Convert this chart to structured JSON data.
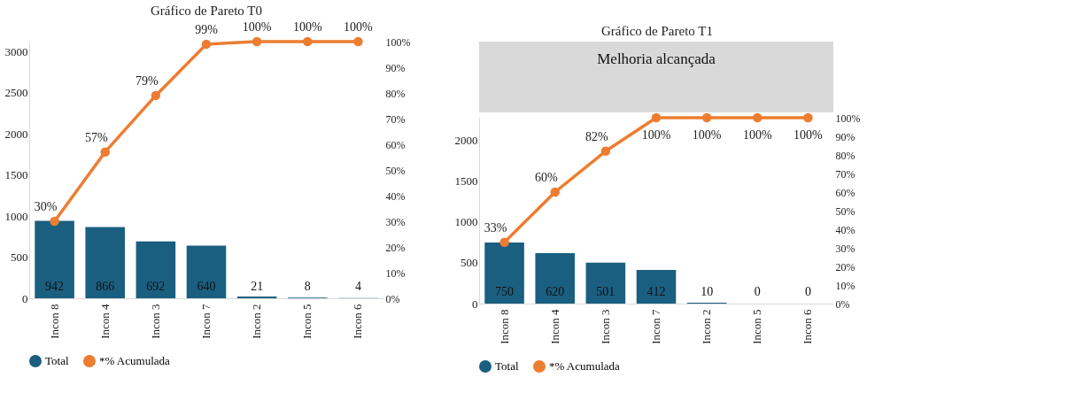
{
  "chart_data": [
    {
      "type": "bar",
      "title": "Gráfico de Pareto T0",
      "categories": [
        "Incon 8",
        "Incon 4",
        "Incon 3",
        "Incon 7",
        "Incon 2",
        "Incon 5",
        "Incon 6"
      ],
      "series": [
        {
          "name": "Total",
          "color": "#1a5f80",
          "values": [
            942,
            866,
            692,
            640,
            21,
            8,
            4
          ],
          "value_labels": [
            "942",
            "866",
            "692",
            "640",
            "21",
            "8",
            "4"
          ]
        },
        {
          "name": "*% Acumulada",
          "type": "line",
          "axis": "y2",
          "color": "#ed7d31",
          "values": [
            30,
            57,
            79,
            99,
            100,
            100,
            100
          ],
          "value_labels": [
            "30%",
            "57%",
            "79%",
            "99%",
            "100%",
            "100%",
            "100%"
          ]
        }
      ],
      "ylim": [
        0,
        3120
      ],
      "yticks": [
        0,
        500,
        1000,
        1500,
        2000,
        2500,
        3000
      ],
      "y2lim": [
        0,
        100
      ],
      "y2ticks": [
        {
          "value": 0,
          "label": "0%"
        },
        {
          "value": 10,
          "label": "10%"
        },
        {
          "value": 20,
          "label": "20%"
        },
        {
          "value": 30,
          "label": "30%"
        },
        {
          "value": 40,
          "label": "40%"
        },
        {
          "value": 50,
          "label": "50%"
        },
        {
          "value": 60,
          "label": "60%"
        },
        {
          "value": 70,
          "label": "70%"
        },
        {
          "value": 80,
          "label": "80%"
        },
        {
          "value": 90,
          "label": "90%"
        },
        {
          "value": 100,
          "label": "100%"
        }
      ],
      "marker": "circle",
      "grid": false,
      "legend": "bottom"
    },
    {
      "type": "bar",
      "title": "Gráfico de Pareto T1",
      "categories": [
        "Incon 8",
        "Incon 4",
        "Incon 3",
        "Incon 7",
        "Incon 2",
        "Incon 5",
        "Incon 6"
      ],
      "series": [
        {
          "name": "Total",
          "color": "#1a5f80",
          "values": [
            750,
            620,
            501,
            412,
            10,
            0,
            0
          ],
          "value_labels": [
            "750",
            "620",
            "501",
            "412",
            "10",
            "0",
            "0"
          ]
        },
        {
          "name": "*% Acumulada",
          "type": "line",
          "axis": "y2",
          "color": "#ed7d31",
          "values": [
            33,
            60,
            82,
            100,
            100,
            100,
            100
          ],
          "value_labels": [
            "33%",
            "60%",
            "82%",
            "100%",
            "100%",
            "100%",
            "100%"
          ]
        }
      ],
      "ylim": [
        0,
        2280
      ],
      "yticks": [
        0,
        500,
        1000,
        1500,
        2000
      ],
      "y2lim": [
        0,
        100
      ],
      "y2ticks": [
        {
          "value": 0,
          "label": "0%"
        },
        {
          "value": 10,
          "label": "10%"
        },
        {
          "value": 20,
          "label": "20%"
        },
        {
          "value": 30,
          "label": "30%"
        },
        {
          "value": 40,
          "label": "40%"
        },
        {
          "value": 50,
          "label": "50%"
        },
        {
          "value": 60,
          "label": "60%"
        },
        {
          "value": 70,
          "label": "70%"
        },
        {
          "value": 80,
          "label": "80%"
        },
        {
          "value": 90,
          "label": "90%"
        },
        {
          "value": 100,
          "label": "100%"
        }
      ],
      "annotations": [
        "Melhoria alcançada"
      ],
      "marker": "circle",
      "grid": false,
      "legend": "bottom"
    }
  ]
}
